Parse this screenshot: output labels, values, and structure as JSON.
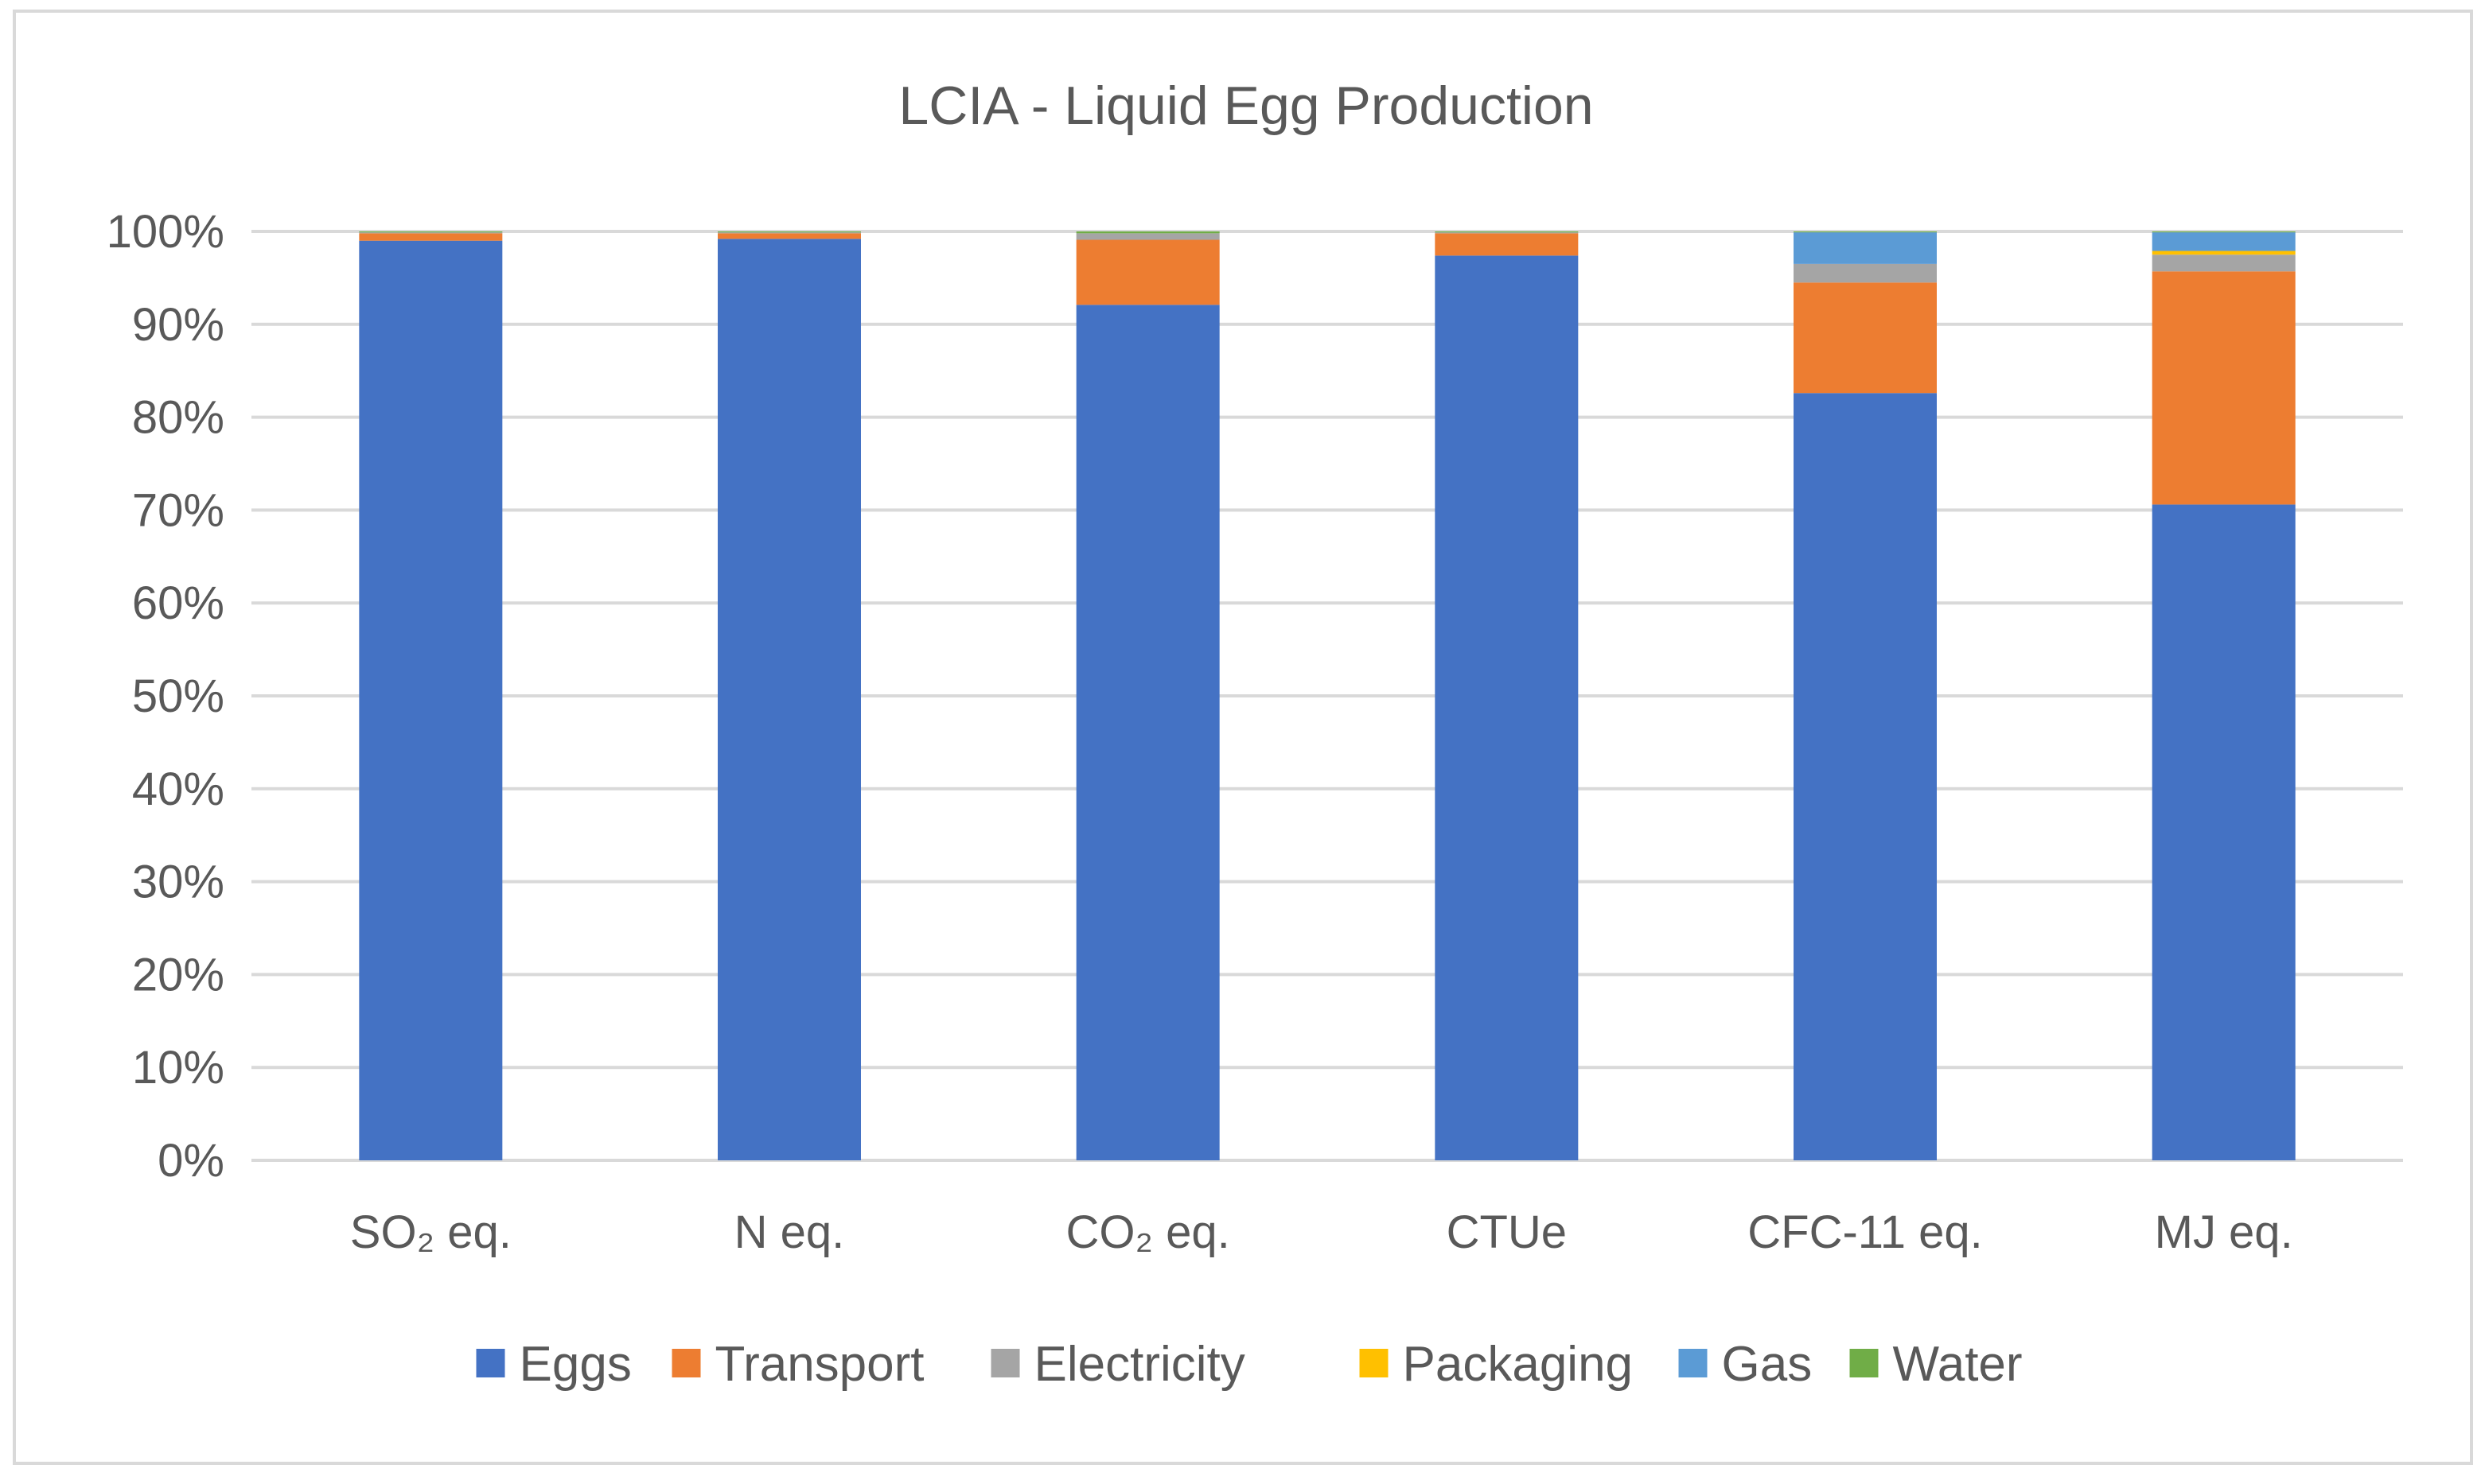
{
  "chart_data": {
    "type": "bar",
    "stacked": true,
    "percent": true,
    "title": "LCIA - Liquid Egg Production",
    "xlabel": "",
    "ylabel": "",
    "ylim": [
      0,
      100
    ],
    "y_ticks": [
      "0%",
      "10%",
      "20%",
      "30%",
      "40%",
      "50%",
      "60%",
      "70%",
      "80%",
      "90%",
      "100%"
    ],
    "categories": [
      "SO₂ eq.",
      "N eq.",
      "CO₂ eq.",
      "CTUe",
      "CFC-11 eq.",
      "MJ eq."
    ],
    "series": [
      {
        "name": "Eggs",
        "color": "#4472c4",
        "values": [
          99.0,
          99.2,
          92.1,
          97.4,
          82.6,
          70.6
        ]
      },
      {
        "name": "Transport",
        "color": "#ed7d31",
        "values": [
          0.8,
          0.6,
          7.0,
          2.4,
          11.9,
          25.1
        ]
      },
      {
        "name": "Electricity",
        "color": "#a5a5a5",
        "values": [
          0.1,
          0.1,
          0.7,
          0.1,
          2.0,
          1.8
        ]
      },
      {
        "name": "Packaging",
        "color": "#ffc000",
        "values": [
          0.0,
          0.0,
          0.0,
          0.0,
          0.0,
          0.4
        ]
      },
      {
        "name": "Gas",
        "color": "#5b9bd5",
        "values": [
          0.0,
          0.0,
          0.0,
          0.0,
          3.4,
          2.0
        ]
      },
      {
        "name": "Water",
        "color": "#70ad47",
        "values": [
          0.1,
          0.1,
          0.2,
          0.1,
          0.1,
          0.1
        ]
      }
    ],
    "grid": true,
    "legend_position": "bottom"
  }
}
